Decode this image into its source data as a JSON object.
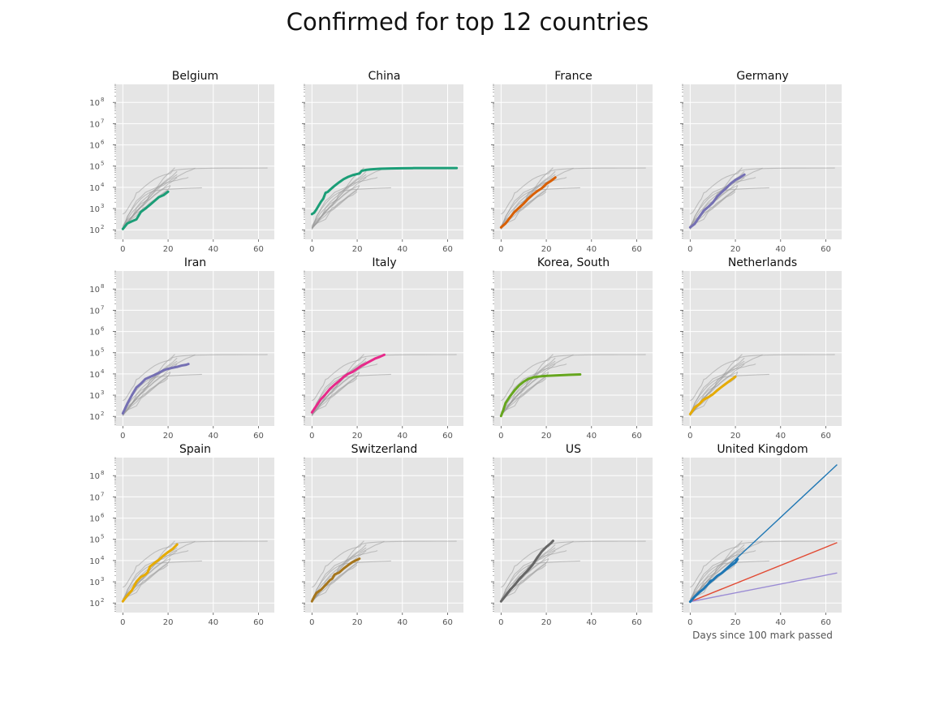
{
  "figure": {
    "title": "Confirmed for top 12 countries"
  },
  "chart_data": {
    "type": "line",
    "yscale": "log",
    "xlim": [
      -3,
      67
    ],
    "ylim_log10": [
      1.55,
      8.85
    ],
    "xticks": [
      0,
      20,
      40,
      60
    ],
    "xtick_labels": [
      "0",
      "20",
      "40",
      "60"
    ],
    "yticks_log10": [
      2,
      3,
      4,
      5,
      6,
      7,
      8
    ],
    "ytick_labels": [
      "10",
      "10",
      "10",
      "10",
      "10",
      "10",
      "10"
    ],
    "ytick_exponents": [
      "2",
      "3",
      "4",
      "5",
      "6",
      "7",
      "8"
    ],
    "xlabel": "Days since 100 mark passed",
    "grid": true,
    "background_color": "#e5e5e5",
    "grey_color": "#9a9a9a",
    "panels": [
      {
        "name": "Belgium",
        "color": "#1b9e77",
        "x": [
          0,
          2,
          4,
          6,
          8,
          10,
          12,
          14,
          16,
          18,
          20
        ],
        "y": [
          109,
          200,
          250,
          310,
          700,
          1000,
          1500,
          2300,
          3500,
          4300,
          6200
        ]
      },
      {
        "name": "China",
        "color": "#1b9e77",
        "x": [
          0,
          1,
          2,
          3,
          4,
          5,
          6,
          7,
          8,
          10,
          12,
          14,
          16,
          18,
          20,
          21,
          22,
          24,
          26,
          30,
          35,
          40,
          45,
          50,
          55,
          60,
          64
        ],
        "y": [
          548,
          643,
          920,
          1400,
          2100,
          2900,
          5500,
          6100,
          7700,
          11800,
          17200,
          24300,
          31100,
          37500,
          42600,
          44600,
          59800,
          66500,
          70500,
          75100,
          77700,
          79400,
          80600,
          80900,
          81000,
          81100,
          81250
        ]
      },
      {
        "name": "France",
        "color": "#d95f02",
        "x": [
          0,
          2,
          4,
          6,
          8,
          10,
          12,
          14,
          16,
          18,
          20,
          22,
          24
        ],
        "y": [
          130,
          200,
          380,
          700,
          1100,
          1700,
          2900,
          4500,
          6600,
          9100,
          14400,
          19800,
          29100
        ]
      },
      {
        "name": "Germany",
        "color": "#7570b3",
        "x": [
          0,
          2,
          4,
          6,
          8,
          10,
          12,
          14,
          16,
          18,
          20,
          22,
          24
        ],
        "y": [
          130,
          190,
          400,
          800,
          1200,
          1900,
          3700,
          6000,
          9300,
          15300,
          22200,
          29000,
          40000
        ]
      },
      {
        "name": "Iran",
        "color": "#7570b3",
        "x": [
          0,
          2,
          4,
          6,
          8,
          10,
          12,
          14,
          16,
          18,
          20,
          22,
          24,
          26,
          28,
          29
        ],
        "y": [
          139,
          400,
          1000,
          2300,
          3500,
          5800,
          7200,
          9000,
          11400,
          14900,
          17400,
          19600,
          21600,
          24800,
          27000,
          29400
        ]
      },
      {
        "name": "Italy",
        "color": "#e7298a",
        "x": [
          0,
          2,
          4,
          6,
          8,
          10,
          12,
          14,
          16,
          18,
          20,
          22,
          24,
          26,
          28,
          30,
          32
        ],
        "y": [
          155,
          320,
          650,
          1100,
          2000,
          3100,
          4600,
          7300,
          10100,
          12500,
          17600,
          24700,
          31500,
          41000,
          53500,
          63900,
          80000
        ]
      },
      {
        "name": "Korea, South",
        "color": "#66a61e",
        "x": [
          0,
          1,
          2,
          4,
          6,
          8,
          10,
          12,
          14,
          16,
          18,
          20,
          25,
          30,
          35
        ],
        "y": [
          104,
          200,
          430,
          900,
          1700,
          2900,
          4300,
          5800,
          6800,
          7400,
          7800,
          8100,
          8600,
          9100,
          9500
        ]
      },
      {
        "name": "Netherlands",
        "color": "#e6ab02",
        "x": [
          0,
          2,
          4,
          6,
          8,
          10,
          12,
          14,
          16,
          18,
          20
        ],
        "y": [
          128,
          260,
          380,
          620,
          800,
          1100,
          1700,
          2500,
          3600,
          5200,
          7400
        ]
      },
      {
        "name": "Spain",
        "color": "#e6ab02",
        "x": [
          0,
          2,
          4,
          6,
          8,
          10,
          11,
          12,
          14,
          16,
          18,
          20,
          22,
          24
        ],
        "y": [
          120,
          230,
          400,
          1000,
          1700,
          2200,
          2800,
          5200,
          7700,
          11000,
          17100,
          25000,
          35000,
          57000
        ]
      },
      {
        "name": "Switzerland",
        "color": "#a6761d",
        "x": [
          0,
          1,
          2,
          4,
          6,
          8,
          9,
          10,
          12,
          14,
          16,
          18,
          20,
          21
        ],
        "y": [
          120,
          200,
          300,
          420,
          700,
          1200,
          1400,
          2200,
          2700,
          4200,
          6100,
          8600,
          10900,
          12300
        ]
      },
      {
        "name": "US",
        "color": "#666666",
        "x": [
          0,
          2,
          4,
          6,
          8,
          10,
          12,
          14,
          16,
          17,
          18,
          20,
          22,
          23
        ],
        "y": [
          120,
          220,
          420,
          700,
          1300,
          2200,
          3600,
          6400,
          13700,
          19000,
          26700,
          43700,
          65600,
          85000
        ]
      },
      {
        "name": "United Kingdom",
        "color": "#1f77b4",
        "x": [
          0,
          2,
          4,
          6,
          8,
          9,
          10,
          12,
          14,
          16,
          18,
          20,
          21
        ],
        "y": [
          115,
          200,
          320,
          470,
          800,
          1100,
          1200,
          1900,
          2600,
          3900,
          5700,
          8000,
          11600
        ],
        "projections": [
          {
            "color": "#1f77b4",
            "x": [
              0,
              65
            ],
            "y": [
              115,
              330000000
            ]
          },
          {
            "color": "#e24a33",
            "x": [
              0,
              65
            ],
            "y": [
              115,
              70000
            ]
          },
          {
            "color": "#9a8bd4",
            "x": [
              0,
              65
            ],
            "y": [
              115,
              2600
            ]
          }
        ]
      }
    ]
  }
}
